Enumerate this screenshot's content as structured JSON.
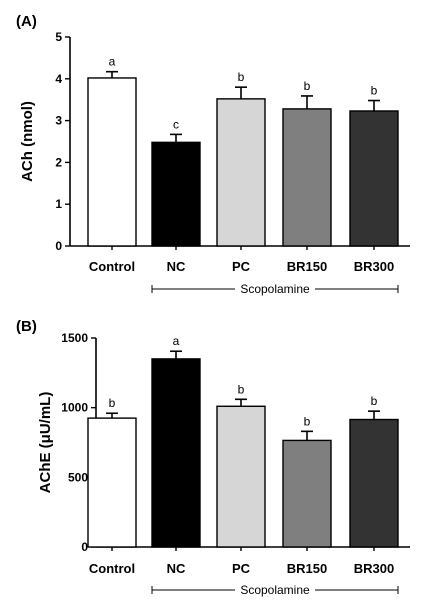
{
  "chart_data": [
    {
      "type": "bar",
      "panel_label": "(A)",
      "categories": [
        "Control",
        "NC",
        "PC",
        "BR150",
        "BR300"
      ],
      "values": [
        4.02,
        2.48,
        3.52,
        3.28,
        3.23
      ],
      "errors": [
        0.15,
        0.19,
        0.28,
        0.31,
        0.25
      ],
      "significance": [
        "a",
        "c",
        "b",
        "b",
        "b"
      ],
      "bar_colors": [
        "#ffffff",
        "#000000",
        "#d6d6d6",
        "#7f7f7f",
        "#333333"
      ],
      "ylabel": "ACh (nmol)",
      "ylim": [
        0,
        5
      ],
      "yticks": [
        "0",
        "1",
        "2",
        "3",
        "4",
        "5"
      ],
      "group_bracket": {
        "label": "Scopolamine",
        "from_category": "NC",
        "to_category": "BR300"
      },
      "grid": false
    },
    {
      "type": "bar",
      "panel_label": "(B)",
      "categories": [
        "Control",
        "NC",
        "PC",
        "BR150",
        "BR300"
      ],
      "values": [
        925,
        1350,
        1010,
        765,
        915
      ],
      "errors": [
        35,
        55,
        50,
        65,
        60
      ],
      "significance": [
        "b",
        "a",
        "b",
        "b",
        "b"
      ],
      "bar_colors": [
        "#ffffff",
        "#000000",
        "#d6d6d6",
        "#7f7f7f",
        "#333333"
      ],
      "ylabel": "AChE (μU/mL)",
      "ylim": [
        0,
        1500
      ],
      "yticks": [
        "0",
        "500",
        "1000",
        "1500"
      ],
      "group_bracket": {
        "label": "Scopolamine",
        "from_category": "NC",
        "to_category": "BR300"
      },
      "grid": false
    }
  ]
}
